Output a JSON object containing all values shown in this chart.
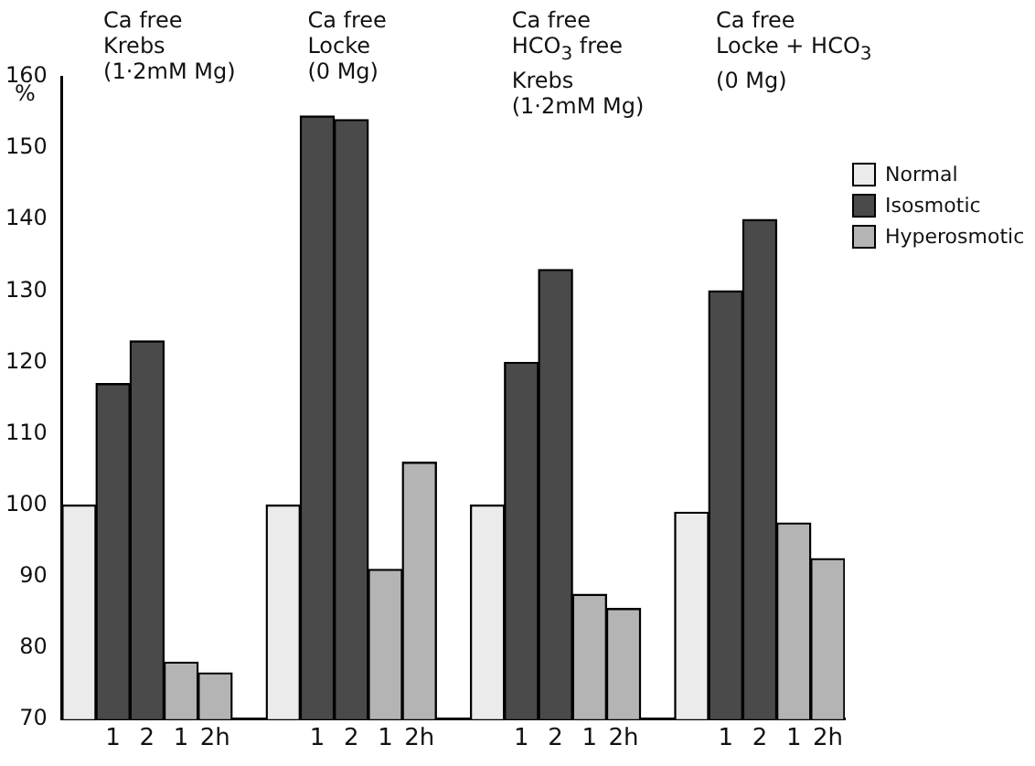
{
  "chart_data": {
    "type": "bar",
    "stacked": true,
    "ylabel": "%",
    "ylim": [
      70,
      160
    ],
    "yticks": [
      70,
      80,
      90,
      100,
      110,
      120,
      130,
      140,
      150,
      160
    ],
    "grid": false,
    "legend": "right",
    "categories": [
      null,
      "1",
      "2",
      "1",
      "2h",
      null,
      null,
      "1",
      "2",
      "1",
      "2h",
      null,
      null,
      "1",
      "2",
      "1",
      "2h",
      null,
      null,
      "1",
      "2",
      "1",
      "2h"
    ],
    "series": [
      {
        "name": "Normal",
        "color": "#ebebeb",
        "values": [
          100,
          null,
          null,
          null,
          null,
          null,
          100,
          null,
          null,
          null,
          null,
          null,
          100,
          null,
          null,
          null,
          null,
          null,
          99,
          null,
          null,
          null,
          null
        ]
      },
      {
        "name": "Isosmotic",
        "color": "#4a4a4a",
        "values": [
          null,
          117,
          123,
          null,
          null,
          null,
          null,
          154.5,
          154,
          null,
          null,
          null,
          null,
          120,
          133,
          null,
          null,
          null,
          null,
          130,
          140,
          null,
          null
        ]
      },
      {
        "name": "Hyperosmotic",
        "color": "#b4b4b4",
        "values": [
          null,
          null,
          null,
          78,
          76.5,
          null,
          null,
          null,
          null,
          91,
          106,
          null,
          null,
          null,
          null,
          87.5,
          85.5,
          null,
          null,
          null,
          null,
          97.5,
          92.5
        ]
      }
    ],
    "annotations": [
      "Ca free\nKrebs\n(1·2mM Mg)",
      "Ca free\nLocke\n(0 Mg)",
      "Ca free\nHCO$_{3}$ free\nKrebs\n(1·2mM Mg)",
      "Ca free\nLocke + HCO$_{3}$\n(0 Mg)"
    ]
  }
}
